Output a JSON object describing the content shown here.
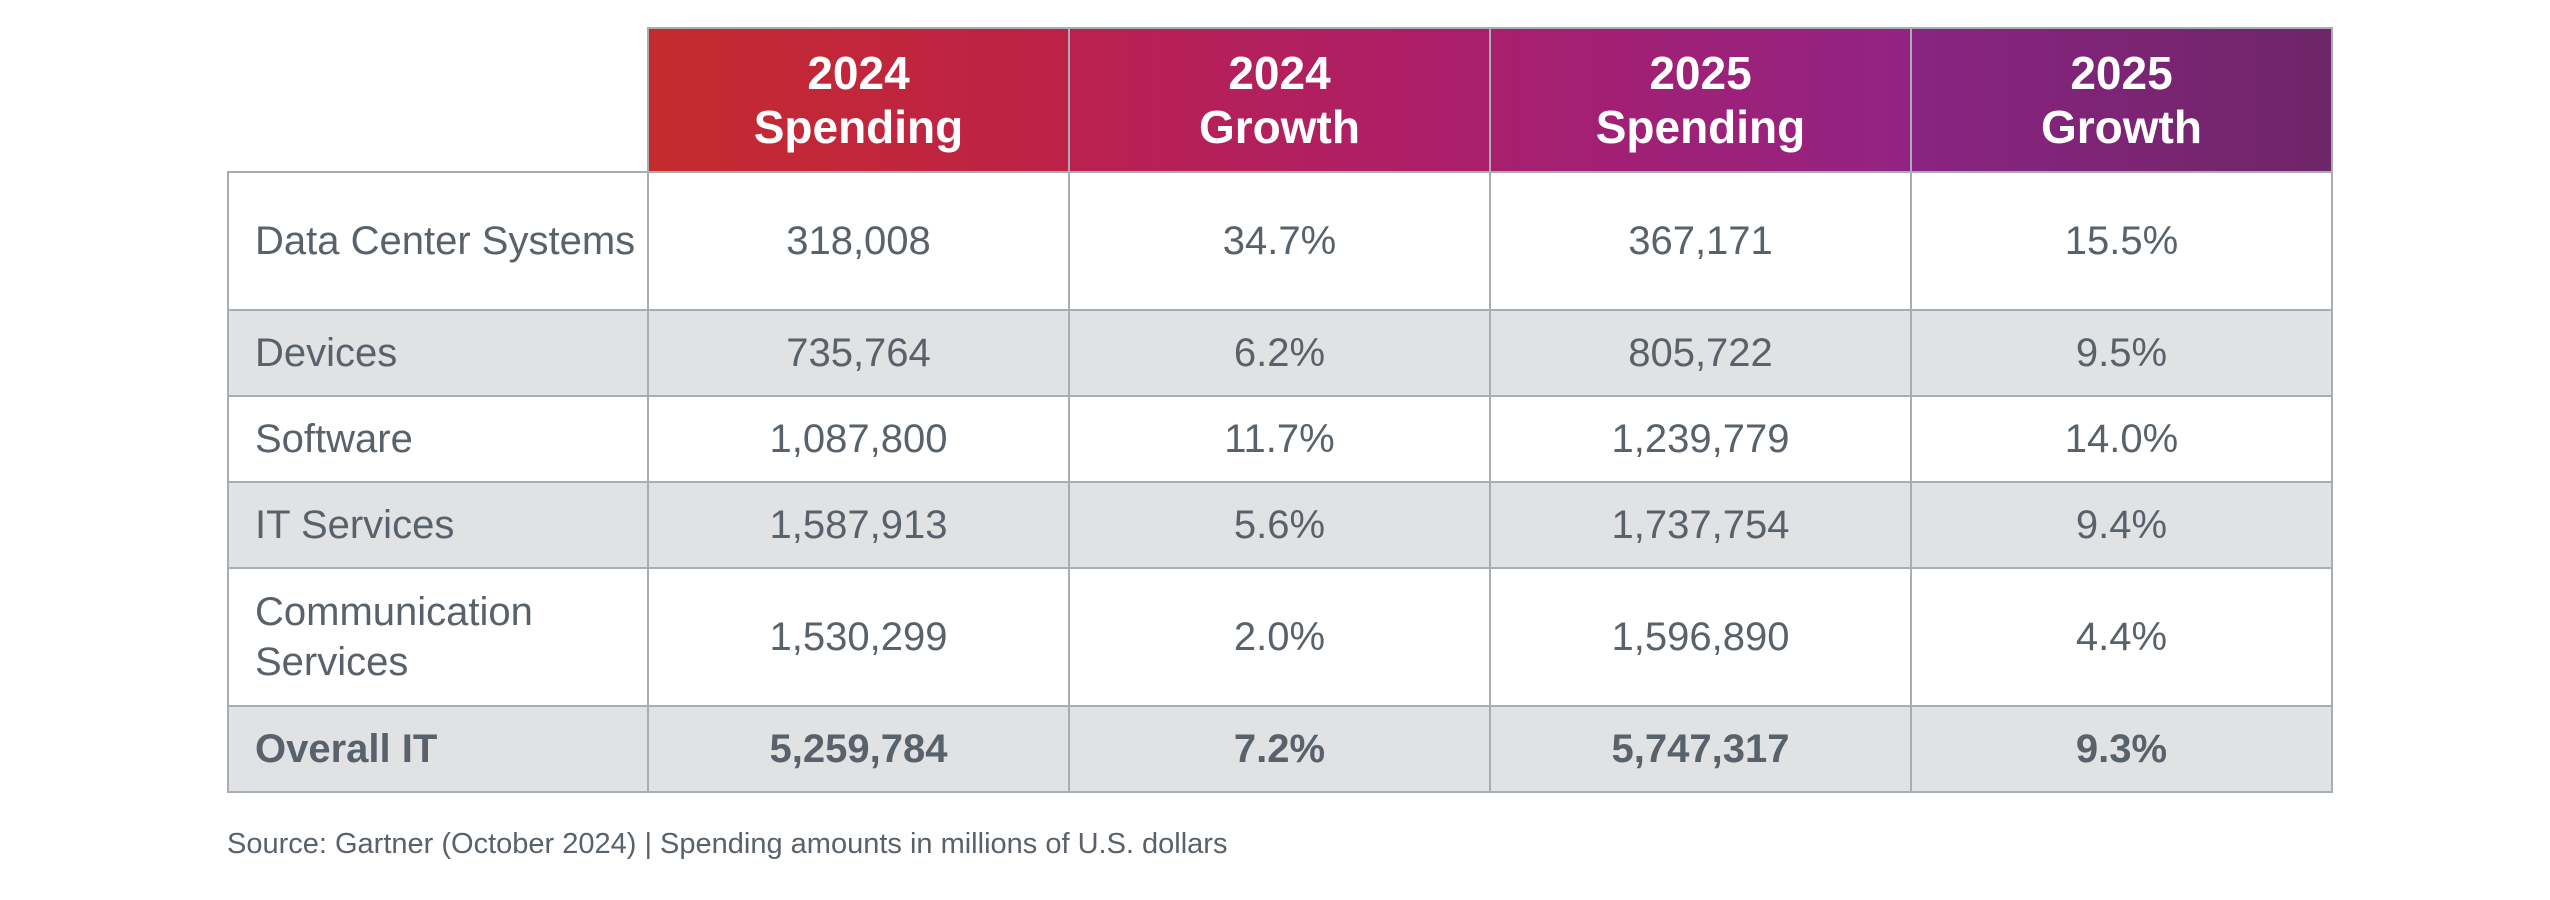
{
  "chart_data": {
    "type": "table",
    "title": "",
    "columns": [
      {
        "year": "2024",
        "metric": "Spending"
      },
      {
        "year": "2024",
        "metric": "Growth"
      },
      {
        "year": "2025",
        "metric": "Spending"
      },
      {
        "year": "2025",
        "metric": "Growth"
      }
    ],
    "rows": [
      {
        "label": "Data Center Systems",
        "values": [
          "318,008",
          "34.7%",
          "367,171",
          "15.5%"
        ]
      },
      {
        "label": "Devices",
        "values": [
          "735,764",
          "6.2%",
          "805,722",
          "9.5%"
        ]
      },
      {
        "label": "Software",
        "values": [
          "1,087,800",
          "11.7%",
          "1,239,779",
          "14.0%"
        ]
      },
      {
        "label": "IT Services",
        "values": [
          "1,587,913",
          "5.6%",
          "1,737,754",
          "9.4%"
        ]
      },
      {
        "label": "Communication Services",
        "values": [
          "1,530,299",
          "2.0%",
          "1,596,890",
          "4.4%"
        ]
      },
      {
        "label": "Overall IT",
        "values": [
          "5,259,784",
          "7.2%",
          "5,747,317",
          "9.3%"
        ]
      }
    ],
    "units": "millions of U.S. dollars"
  },
  "source_note": "Source: Gartner (October 2024) | Spending amounts in millions of U.S. dollars",
  "colors": {
    "header_gradient_start": "#c52b2e",
    "header_gradient_mid": "#a81f6e",
    "header_gradient_end": "#6e2568",
    "text": "#59626b",
    "row_shade": "#e1e2e4",
    "grid": "#a7adb3"
  }
}
